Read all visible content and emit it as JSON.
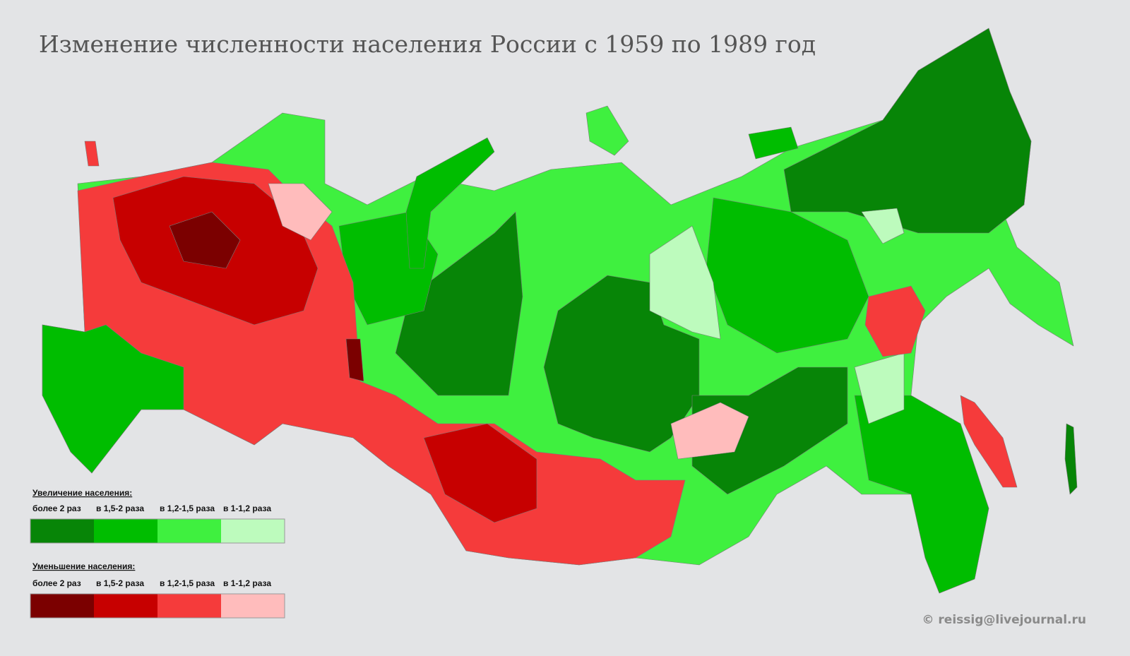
{
  "title": "Изменение численности населения России с 1959 по 1989 год",
  "legend": {
    "increase": {
      "heading": "Увеличение населения:",
      "items": [
        {
          "label": "более 2 раз",
          "color": "#078507"
        },
        {
          "label": "в 1,5-2 раза",
          "color": "#00bd00"
        },
        {
          "label": "в 1,2-1,5 раза",
          "color": "#3ff03f"
        },
        {
          "label": "в 1-1,2 раза",
          "color": "#bdfbbd"
        }
      ]
    },
    "decrease": {
      "heading": "Уменьшение населения:",
      "items": [
        {
          "label": "более 2 раз",
          "color": "#7b0000"
        },
        {
          "label": "в 1,5-2 раза",
          "color": "#c70000"
        },
        {
          "label": "в 1,2-1,5 раза",
          "color": "#f53b3b"
        },
        {
          "label": "в 1-1,2 раза",
          "color": "#ffbcbc"
        }
      ]
    }
  },
  "credit": "© reissig@livejournal.ru"
}
